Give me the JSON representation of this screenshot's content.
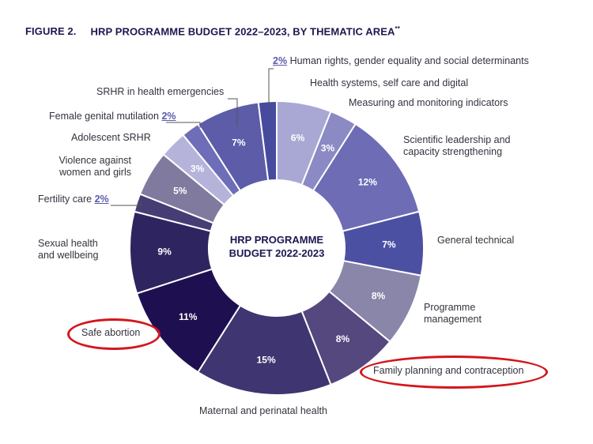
{
  "title": {
    "figure": "FIGURE 2.",
    "text": "HRP PROGRAMME BUDGET 2022–2023, BY THEMATIC AREA",
    "footnote_mark": "**"
  },
  "chart_data": {
    "type": "pie",
    "donut": true,
    "title": "HRP PROGRAMME BUDGET 2022–2023, BY THEMATIC AREA",
    "center_label": [
      "HRP PROGRAMME",
      "BUDGET 2022-2023"
    ],
    "unit": "%",
    "slices": [
      {
        "name": "Health systems, self care and digital",
        "value": 6,
        "color": "#a9a8d4",
        "label": "6%"
      },
      {
        "name": "Measuring and monitoring indicators",
        "value": 3,
        "color": "#8b8ac4",
        "label": "3%"
      },
      {
        "name": "Scientific leadership and capacity strengthening",
        "value": 12,
        "color": "#6d6cb5",
        "label": "12%"
      },
      {
        "name": "General technical",
        "value": 7,
        "color": "#4c50a3",
        "label": "7%"
      },
      {
        "name": "Programme management",
        "value": 8,
        "color": "#8a86aa",
        "label": "8%"
      },
      {
        "name": "Family planning and contraception",
        "value": 8,
        "color": "#54487f",
        "label": "8%"
      },
      {
        "name": "Maternal and perinatal health",
        "value": 15,
        "color": "#3f3570",
        "label": "15%"
      },
      {
        "name": "Safe abortion",
        "value": 11,
        "color": "#1e1050",
        "label": "11%"
      },
      {
        "name": "Sexual health and wellbeing",
        "value": 9,
        "color": "#2e2560",
        "label": "9%"
      },
      {
        "name": "Fertility care",
        "value": 2,
        "color": "#463d75",
        "label": "2%"
      },
      {
        "name": "Violence against women and girls",
        "value": 5,
        "color": "#807a9e",
        "label": "5%"
      },
      {
        "name": "Adolescent SRHR",
        "value": 3,
        "color": "#b5b3da",
        "label": "3%"
      },
      {
        "name": "Female genital mutilation",
        "value": 2,
        "color": "#6e6db8",
        "label": "2%"
      },
      {
        "name": "SRHR in health emergencies",
        "value": 7,
        "color": "#5c5ca9",
        "label": "7%"
      },
      {
        "name": "Human rights, gender equality and social determinants",
        "value": 2,
        "color": "#474b9e",
        "label": "2%"
      }
    ],
    "highlighted": [
      "Safe abortion",
      "Family planning and contraception"
    ]
  },
  "labels": {
    "human_rights": "Human rights, gender equality and social determinants",
    "health_systems": "Health systems, self care and digital",
    "measuring": "Measuring and monitoring indicators",
    "scientific_1": "Scientific leadership and",
    "scientific_2": "capacity strengthening",
    "general": "General technical",
    "programme_1": "Programme",
    "programme_2": "management",
    "family": "Family planning and contraception",
    "maternal": "Maternal and perinatal health",
    "safe": "Safe abortion",
    "sexual_1": "Sexual health",
    "sexual_2": "and wellbeing",
    "fertility": "Fertility care",
    "violence_1": "Violence against",
    "violence_2": "women and girls",
    "adolescent": "Adolescent SRHR",
    "fgm": "Female genital mutilation",
    "emergencies": "SRHR in health emergencies",
    "pct_2": "2%"
  }
}
